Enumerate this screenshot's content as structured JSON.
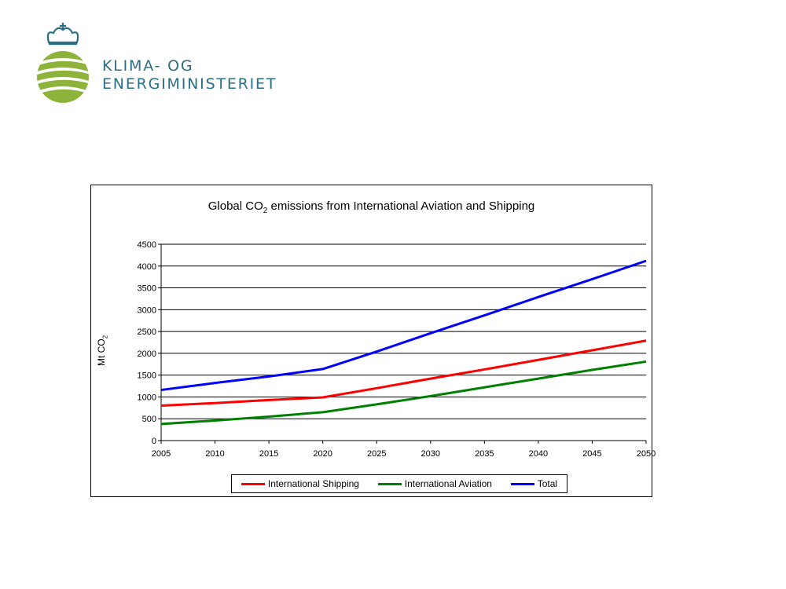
{
  "logo": {
    "line1": "KLIMA- OG",
    "line2": "ENERGIMINISTERIET",
    "colors": {
      "text": "#2a6e86",
      "globe": "#8db33a",
      "crown": "#2a6e86"
    }
  },
  "chart_data": {
    "type": "line",
    "title_prefix": "Global CO",
    "title_sub": "2",
    "title_suffix": " emissions from International Aviation and Shipping",
    "xlabel": "",
    "ylabel_prefix": "Mt CO",
    "ylabel_sub": "2",
    "xlim": [
      2005,
      2050
    ],
    "ylim": [
      0,
      4500
    ],
    "x_ticks": [
      "2005",
      "2010",
      "2015",
      "2020",
      "2025",
      "2030",
      "2035",
      "2040",
      "2045",
      "2050"
    ],
    "y_ticks": [
      "0",
      "500",
      "1000",
      "1500",
      "2000",
      "2500",
      "3000",
      "3500",
      "4000",
      "4500"
    ],
    "grid": true,
    "legend_position": "bottom",
    "x": [
      2005,
      2010,
      2015,
      2020,
      2025,
      2030,
      2035,
      2040,
      2045,
      2050
    ],
    "series": [
      {
        "name": "International Shipping",
        "color": "#ff0000",
        "values": [
          800,
          860,
          930,
          990,
          1200,
          1420,
          1630,
          1850,
          2070,
          2290
        ]
      },
      {
        "name": "International Aviation",
        "color": "#008000",
        "values": [
          380,
          460,
          550,
          650,
          830,
          1020,
          1220,
          1420,
          1620,
          1810
        ]
      },
      {
        "name": "Total",
        "color": "#0000ff",
        "values": [
          1160,
          1320,
          1470,
          1640,
          2040,
          2460,
          2870,
          3290,
          3700,
          4120
        ]
      }
    ]
  }
}
